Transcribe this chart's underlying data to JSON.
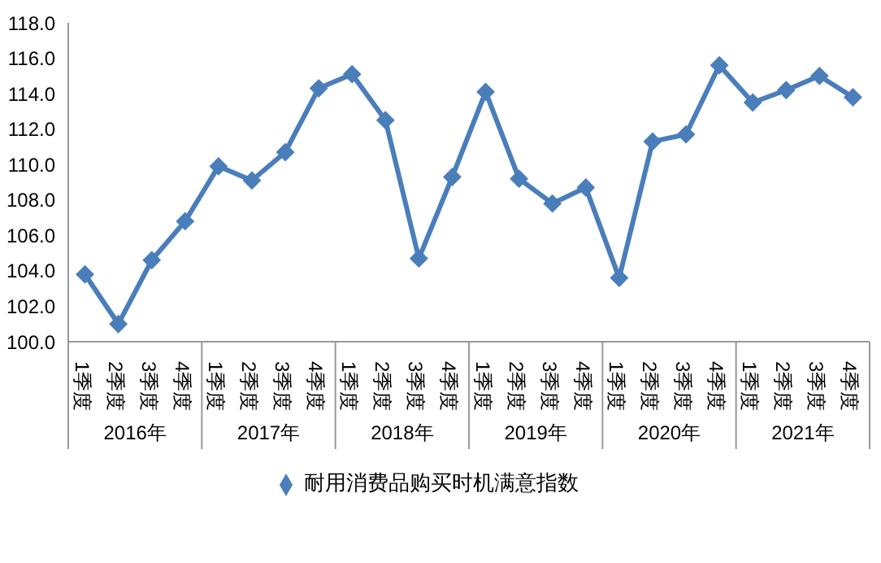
{
  "chart_data": {
    "type": "line",
    "categories": [
      "1季度",
      "2季度",
      "3季度",
      "4季度",
      "1季度",
      "2季度",
      "3季度",
      "4季度",
      "1季度",
      "2季度",
      "3季度",
      "4季度",
      "1季度",
      "2季度",
      "3季度",
      "4季度",
      "1季度",
      "2季度",
      "3季度",
      "4季度",
      "1季度",
      "2季度",
      "3季度",
      "4季度"
    ],
    "annotations": [
      "2016年",
      "2017年",
      "2018年",
      "2019年",
      "2020年",
      "2021年"
    ],
    "series": [
      {
        "name": "耐用消费品购买时机满意指数",
        "color": "#4a7ebb",
        "values": [
          103.8,
          101.0,
          104.6,
          106.8,
          109.9,
          109.1,
          110.7,
          114.3,
          115.1,
          112.5,
          104.7,
          109.3,
          114.1,
          109.2,
          107.8,
          108.7,
          103.6,
          111.3,
          111.7,
          115.6,
          113.5,
          114.2,
          115.0,
          113.8
        ]
      }
    ],
    "ylim": [
      100,
      118
    ],
    "yticks": [
      {
        "value": 100,
        "label": "100.0"
      },
      {
        "value": 102,
        "label": "102.0"
      },
      {
        "value": 104,
        "label": "104.0"
      },
      {
        "value": 106,
        "label": "106.0"
      },
      {
        "value": 108,
        "label": "108.0"
      },
      {
        "value": 110,
        "label": "110.0"
      },
      {
        "value": 112,
        "label": "112.0"
      },
      {
        "value": 114,
        "label": "114.0"
      },
      {
        "value": 116,
        "label": "116.0"
      },
      {
        "value": 118,
        "label": "118.0"
      }
    ],
    "grid": false,
    "legend": "bottom",
    "marker": "diamond",
    "line_style": "solid"
  }
}
